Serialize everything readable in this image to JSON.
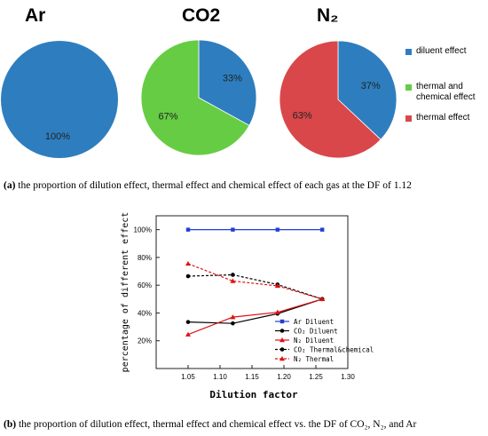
{
  "chart_data": [
    {
      "type": "pie",
      "title": "Ar",
      "slices": [
        {
          "label": "diluent  effect",
          "value": 100,
          "display": "100%",
          "color": "#2e7ebf"
        }
      ]
    },
    {
      "type": "pie",
      "title": "CO2",
      "slices": [
        {
          "label": "diluent  effect",
          "value": 33,
          "display": "33%",
          "color": "#2e7ebf"
        },
        {
          "label": "thermal and chemical effect",
          "value": 67,
          "display": "67%",
          "color": "#66cc44"
        }
      ]
    },
    {
      "type": "pie",
      "title": "N₂",
      "slices": [
        {
          "label": "diluent  effect",
          "value": 37,
          "display": "37%",
          "color": "#2e7ebf"
        },
        {
          "label": "thermal effect",
          "value": 63,
          "display": "63%",
          "color": "#d9474a"
        }
      ]
    },
    {
      "type": "line",
      "title": "",
      "xlabel": "Dilution factor",
      "ylabel": "percentage of different effect",
      "xlim": [
        1.0,
        1.3
      ],
      "ylim": [
        0,
        110
      ],
      "xticks": [
        "1.05",
        "1.10",
        "1.15",
        "1.20",
        "1.25",
        "1.30"
      ],
      "yticks": [
        "20%",
        "40%",
        "60%",
        "80%",
        "100%"
      ],
      "x": [
        1.05,
        1.12,
        1.19,
        1.26
      ],
      "series": [
        {
          "name": "Ar Diluent",
          "values": [
            100,
            100,
            100,
            100
          ],
          "color": "#1f3fd6",
          "dash": false,
          "marker": "square"
        },
        {
          "name": "CO₂ Diluent",
          "values": [
            33.5,
            32.5,
            39.5,
            50
          ],
          "color": "#000000",
          "dash": false,
          "marker": "circle"
        },
        {
          "name": "N₂ Diluent",
          "values": [
            24.5,
            37,
            40.5,
            50
          ],
          "color": "#e01010",
          "dash": false,
          "marker": "triangle"
        },
        {
          "name": "CO₂ Thermal&chemical",
          "values": [
            66.5,
            67.5,
            60.5,
            50
          ],
          "color": "#000000",
          "dash": true,
          "marker": "circle"
        },
        {
          "name": "N₂ Thermal",
          "values": [
            75.5,
            63,
            59.5,
            50
          ],
          "color": "#e01010",
          "dash": true,
          "marker": "triangle"
        }
      ],
      "legend": "bottom-right"
    }
  ],
  "legend_pies": [
    {
      "label": "diluent  effect",
      "color": "#2e7ebf"
    },
    {
      "label": "thermal and chemical effect",
      "color": "#66cc44"
    },
    {
      "label": "thermal effect",
      "color": "#d9474a"
    }
  ],
  "captions": {
    "a_prefix": "(a)",
    "a_text": " the proportion of dilution effect, thermal effect and chemical effect of each gas at the DF of 1.12",
    "b_prefix": "(b)",
    "b_text": " the proportion of dilution effect, thermal effect and chemical effect vs. the DF of CO₂, N₂, and Ar"
  }
}
